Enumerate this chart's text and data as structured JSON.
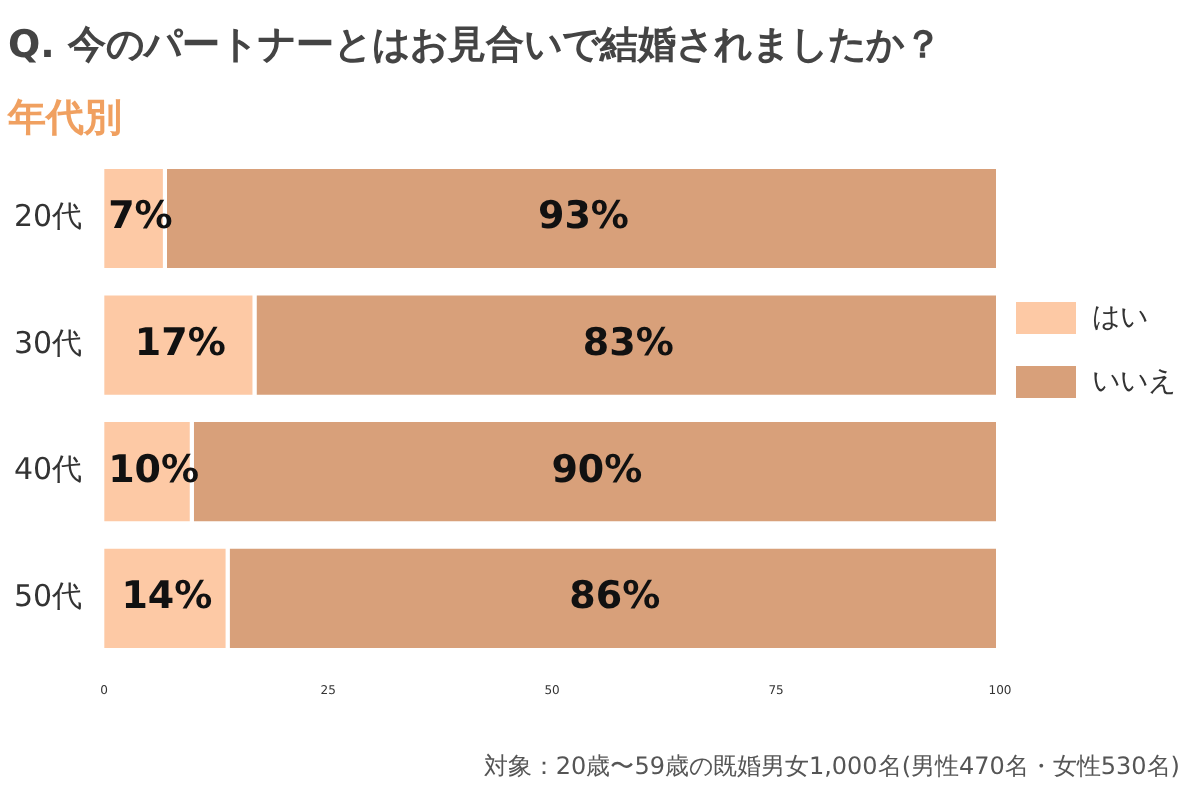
{
  "chart_data": {
    "type": "bar",
    "orientation": "horizontal",
    "stacked": true,
    "title": "Q. 今のパートナーとはお見合いで結婚されましたか？",
    "subtitle": "年代別",
    "categories": [
      "20代",
      "30代",
      "40代",
      "50代"
    ],
    "series": [
      {
        "name": "はい",
        "color": "#fdc9a5",
        "values": [
          7,
          17,
          10,
          14
        ],
        "value_labels": [
          "7%",
          "17%",
          "10%",
          "14%"
        ]
      },
      {
        "name": "いいえ",
        "color": "#d8a07a",
        "values": [
          93,
          83,
          90,
          86
        ],
        "value_labels": [
          "93%",
          "83%",
          "90%",
          "86%"
        ]
      }
    ],
    "xlim": [
      0,
      100
    ],
    "xticks": [
      0,
      25,
      50,
      75,
      100
    ],
    "grid": false,
    "legend": "right",
    "annotations": [
      "対象：20歳〜59歳の既婚男女1,000名(男性470名・女性530名)"
    ]
  }
}
